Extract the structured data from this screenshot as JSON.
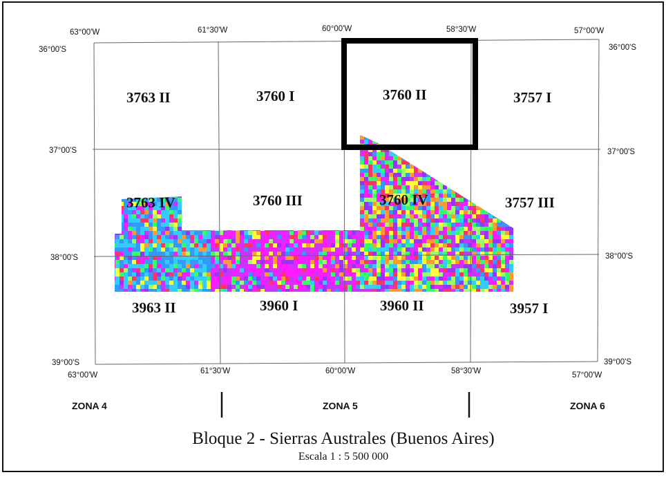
{
  "map": {
    "title": "Bloque 2 - Sierras Australes (Buenos Aires)",
    "scale": "Escala 1 : 5 500 000",
    "top_longitudes": [
      "63°00'W",
      "61°30'W",
      "60°00'W",
      "58°30'W",
      "57°00'W"
    ],
    "bottom_longitudes": [
      "63°00'W",
      "61°30'W",
      "60°00'W",
      "58°30'W",
      "57°00'W"
    ],
    "left_latitudes": [
      "36°00'S",
      "37°00'S",
      "38°00'S",
      "39°00'S"
    ],
    "right_latitudes": [
      "36°00'S",
      "37°00'S",
      "38°00'S",
      "39°00'S"
    ],
    "sheets": [
      "3763 II",
      "3760 I",
      "3760 II",
      "3757 I",
      "3763 IV",
      "3760 III",
      "3760 IV",
      "3757 III",
      "3963 II",
      "3960 I",
      "3960 II",
      "3957 I"
    ],
    "highlighted_sheet": "3760 II",
    "zones": [
      "ZONA 4",
      "ZONA 5",
      "ZONA 6"
    ],
    "data_colors": [
      "#ff1aff",
      "#ff3366",
      "#ffff33",
      "#33ff66",
      "#33ccff",
      "#3399ff",
      "#9933ff",
      "#cc33ff",
      "#99ff66",
      "#ff9933"
    ]
  }
}
